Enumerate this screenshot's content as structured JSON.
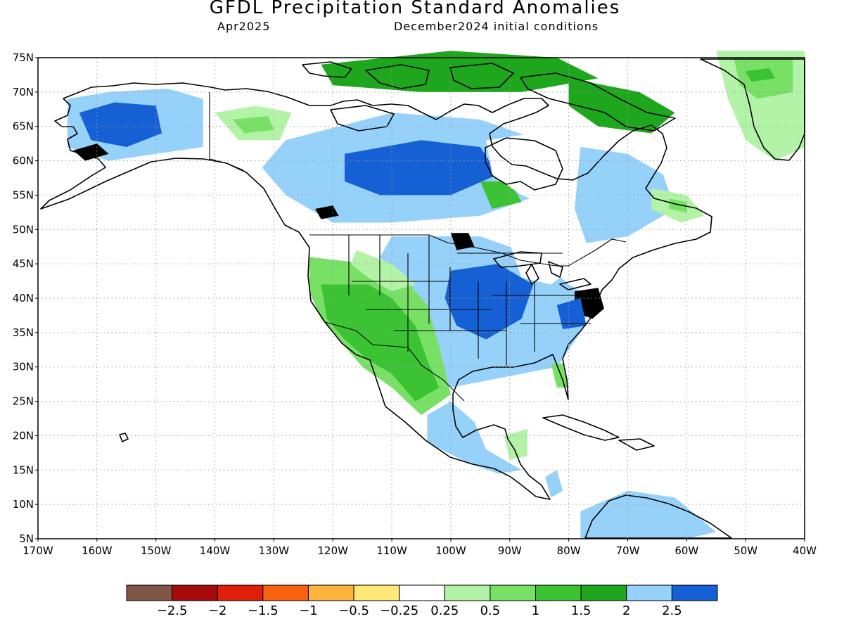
{
  "header": {
    "title": "GFDL Precipitation Standard Anomalies",
    "period": "Apr2025",
    "init": "December2024 initial conditions"
  },
  "map": {
    "lon_range": [
      -170,
      -40
    ],
    "lat_range": [
      5,
      75
    ],
    "lat_ticks": [
      {
        "value": 75,
        "label": "75N"
      },
      {
        "value": 70,
        "label": "70N"
      },
      {
        "value": 65,
        "label": "65N"
      },
      {
        "value": 60,
        "label": "60N"
      },
      {
        "value": 55,
        "label": "55N"
      },
      {
        "value": 50,
        "label": "50N"
      },
      {
        "value": 45,
        "label": "45N"
      },
      {
        "value": 40,
        "label": "40N"
      },
      {
        "value": 35,
        "label": "35N"
      },
      {
        "value": 30,
        "label": "30N"
      },
      {
        "value": 25,
        "label": "25N"
      },
      {
        "value": 20,
        "label": "20N"
      },
      {
        "value": 15,
        "label": "15N"
      },
      {
        "value": 10,
        "label": "10N"
      },
      {
        "value": 5,
        "label": "5N"
      }
    ],
    "lon_ticks": [
      {
        "value": -170,
        "label": "170W"
      },
      {
        "value": -160,
        "label": "160W"
      },
      {
        "value": -150,
        "label": "150W"
      },
      {
        "value": -140,
        "label": "140W"
      },
      {
        "value": -130,
        "label": "130W"
      },
      {
        "value": -120,
        "label": "120W"
      },
      {
        "value": -110,
        "label": "110W"
      },
      {
        "value": -100,
        "label": "100W"
      },
      {
        "value": -90,
        "label": "90W"
      },
      {
        "value": -80,
        "label": "80W"
      },
      {
        "value": -70,
        "label": "70W"
      },
      {
        "value": -60,
        "label": "60W"
      },
      {
        "value": -50,
        "label": "50W"
      },
      {
        "value": -40,
        "label": "40W"
      }
    ],
    "grid": true,
    "regions": [
      {
        "name": "alaska-interior",
        "category": 11,
        "points": [
          [
            -165,
            69
          ],
          [
            -158,
            70
          ],
          [
            -148,
            70.5
          ],
          [
            -142,
            69
          ],
          [
            -142,
            62
          ],
          [
            -150,
            61
          ],
          [
            -158,
            60
          ],
          [
            -165,
            62
          ]
        ]
      },
      {
        "name": "alaska-core",
        "category": 12,
        "points": [
          [
            -163,
            67
          ],
          [
            -157,
            68.5
          ],
          [
            -150,
            68
          ],
          [
            -149,
            64
          ],
          [
            -155,
            62
          ],
          [
            -161,
            63
          ]
        ]
      },
      {
        "name": "alaska-blue",
        "category": 13,
        "points": [
          [
            -164,
            61.5
          ],
          [
            -160,
            62.5
          ],
          [
            -158,
            61
          ],
          [
            -162,
            60
          ]
        ]
      },
      {
        "name": "yukon-dry",
        "category": 7,
        "points": [
          [
            -140,
            67
          ],
          [
            -133,
            68
          ],
          [
            -127,
            67
          ],
          [
            -129,
            63
          ],
          [
            -136,
            63
          ]
        ]
      },
      {
        "name": "yukon-orange",
        "category": 8,
        "points": [
          [
            -137,
            66
          ],
          [
            -131,
            66.5
          ],
          [
            -130,
            64.5
          ],
          [
            -135,
            64
          ]
        ]
      },
      {
        "name": "nwt-boreal",
        "category": 11,
        "points": [
          [
            -128,
            63
          ],
          [
            -110,
            67
          ],
          [
            -95,
            66
          ],
          [
            -85,
            63
          ],
          [
            -80,
            60
          ],
          [
            -85,
            55
          ],
          [
            -95,
            52
          ],
          [
            -110,
            51
          ],
          [
            -120,
            51
          ],
          [
            -128,
            55
          ],
          [
            -132,
            59
          ]
        ]
      },
      {
        "name": "boreal-core",
        "category": 12,
        "points": [
          [
            -118,
            61
          ],
          [
            -105,
            63
          ],
          [
            -95,
            62
          ],
          [
            -92,
            58
          ],
          [
            -100,
            55
          ],
          [
            -112,
            55
          ],
          [
            -118,
            57
          ]
        ]
      },
      {
        "name": "hudson-light",
        "category": 9,
        "points": [
          [
            -95,
            57
          ],
          [
            -90,
            57
          ],
          [
            -88,
            54
          ],
          [
            -93,
            53
          ]
        ]
      },
      {
        "name": "arctic-islands",
        "category": 10,
        "points": [
          [
            -122,
            74
          ],
          [
            -100,
            76
          ],
          [
            -82,
            75
          ],
          [
            -75,
            72
          ],
          [
            -88,
            70
          ],
          [
            -105,
            70
          ],
          [
            -120,
            71
          ]
        ]
      },
      {
        "name": "bc-blue",
        "category": 13,
        "points": [
          [
            -123,
            53
          ],
          [
            -120,
            53.5
          ],
          [
            -119,
            52
          ],
          [
            -122,
            51.5
          ]
        ]
      },
      {
        "name": "hudson-bay-blank",
        "category": 6,
        "points": [
          [
            -94,
            63
          ],
          [
            -86,
            64
          ],
          [
            -78,
            62
          ],
          [
            -78,
            56
          ],
          [
            -82,
            53
          ],
          [
            -88,
            55
          ],
          [
            -93,
            58
          ]
        ]
      },
      {
        "name": "quebec-green",
        "category": 11,
        "points": [
          [
            -78,
            62
          ],
          [
            -70,
            61
          ],
          [
            -64,
            58
          ],
          [
            -62,
            53
          ],
          [
            -70,
            49
          ],
          [
            -77,
            48
          ],
          [
            -79,
            53
          ]
        ]
      },
      {
        "name": "labrador-dry",
        "category": 7,
        "points": [
          [
            -66,
            56
          ],
          [
            -60,
            55
          ],
          [
            -57,
            52
          ],
          [
            -61,
            51
          ],
          [
            -66,
            53
          ]
        ]
      },
      {
        "name": "labrador-orange",
        "category": 8,
        "points": [
          [
            -63,
            54.5
          ],
          [
            -60,
            54
          ],
          [
            -60,
            52.5
          ],
          [
            -63,
            53
          ]
        ]
      },
      {
        "name": "baffin-green",
        "category": 10,
        "points": [
          [
            -80,
            72
          ],
          [
            -68,
            70
          ],
          [
            -62,
            67
          ],
          [
            -66,
            64
          ],
          [
            -75,
            65
          ],
          [
            -80,
            68
          ]
        ]
      },
      {
        "name": "greenland-dry",
        "category": 7,
        "points": [
          [
            -55,
            76
          ],
          [
            -40,
            76
          ],
          [
            -40,
            62
          ],
          [
            -45,
            60
          ],
          [
            -50,
            63
          ],
          [
            -53,
            69
          ]
        ]
      },
      {
        "name": "greenland-orange",
        "category": 8,
        "points": [
          [
            -52,
            75
          ],
          [
            -42,
            75
          ],
          [
            -42,
            70
          ],
          [
            -48,
            69
          ],
          [
            -51,
            71
          ]
        ]
      },
      {
        "name": "greenland-red",
        "category": 9,
        "points": [
          [
            -50,
            73
          ],
          [
            -46,
            73.5
          ],
          [
            -45,
            72
          ],
          [
            -49,
            71.5
          ]
        ]
      },
      {
        "name": "plains-midwest",
        "category": 11,
        "points": [
          [
            -110,
            49
          ],
          [
            -95,
            49
          ],
          [
            -85,
            46
          ],
          [
            -80,
            42
          ],
          [
            -76,
            40
          ],
          [
            -78,
            35
          ],
          [
            -82,
            30
          ],
          [
            -88,
            29
          ],
          [
            -94,
            28
          ],
          [
            -100,
            27
          ],
          [
            -104,
            30
          ],
          [
            -105,
            36
          ],
          [
            -108,
            42
          ],
          [
            -112,
            46
          ]
        ]
      },
      {
        "name": "midwest-core",
        "category": 12,
        "points": [
          [
            -100,
            44
          ],
          [
            -92,
            45
          ],
          [
            -86,
            42
          ],
          [
            -88,
            37
          ],
          [
            -94,
            34
          ],
          [
            -99,
            36
          ],
          [
            -101,
            40
          ]
        ]
      },
      {
        "name": "minnesota-blue",
        "category": 13,
        "points": [
          [
            -100,
            49.5
          ],
          [
            -97,
            49.5
          ],
          [
            -96,
            47.5
          ],
          [
            -99,
            47
          ]
        ]
      },
      {
        "name": "midatlantic-blue",
        "category": 13,
        "points": [
          [
            -79,
            41
          ],
          [
            -75,
            41.5
          ],
          [
            -74,
            38.5
          ],
          [
            -76,
            37
          ],
          [
            -79,
            38
          ]
        ]
      },
      {
        "name": "midatlantic-light",
        "category": 12,
        "points": [
          [
            -82,
            39
          ],
          [
            -78,
            40
          ],
          [
            -77,
            36
          ],
          [
            -81,
            35.5
          ]
        ]
      },
      {
        "name": "great-lakes-blank",
        "category": 6,
        "points": [
          [
            -90,
            48
          ],
          [
            -84,
            48
          ],
          [
            -80,
            44
          ],
          [
            -83,
            42
          ],
          [
            -88,
            43
          ]
        ]
      },
      {
        "name": "west-orange",
        "category": 8,
        "points": [
          [
            -124,
            46
          ],
          [
            -114,
            45
          ],
          [
            -108,
            43
          ],
          [
            -104,
            39
          ],
          [
            -102,
            33
          ],
          [
            -100,
            26
          ],
          [
            -105,
            23
          ],
          [
            -110,
            27
          ],
          [
            -115,
            30
          ],
          [
            -118,
            33
          ],
          [
            -122,
            37
          ],
          [
            -124,
            41
          ]
        ]
      },
      {
        "name": "southwest-red",
        "category": 9,
        "points": [
          [
            -122,
            42
          ],
          [
            -114,
            42
          ],
          [
            -110,
            40
          ],
          [
            -106,
            36
          ],
          [
            -104,
            31
          ],
          [
            -102,
            27
          ],
          [
            -106,
            25
          ],
          [
            -110,
            29
          ],
          [
            -114,
            31
          ],
          [
            -118,
            34
          ],
          [
            -121,
            37
          ]
        ]
      },
      {
        "name": "plateau-dry",
        "category": 7,
        "points": [
          [
            -116,
            47
          ],
          [
            -110,
            45
          ],
          [
            -106,
            42
          ],
          [
            -110,
            41
          ],
          [
            -114,
            43
          ],
          [
            -117,
            45
          ]
        ]
      },
      {
        "name": "mexico-green",
        "category": 11,
        "points": [
          [
            -100,
            25
          ],
          [
            -96,
            22
          ],
          [
            -94,
            18
          ],
          [
            -90,
            16
          ],
          [
            -88,
            15
          ],
          [
            -92,
            14.5
          ],
          [
            -97,
            16
          ],
          [
            -104,
            19
          ],
          [
            -104,
            23
          ]
        ]
      },
      {
        "name": "yucatan-dry",
        "category": 7,
        "points": [
          [
            -91,
            20
          ],
          [
            -87,
            21
          ],
          [
            -87,
            17
          ],
          [
            -90,
            16.5
          ]
        ]
      },
      {
        "name": "florida-dry",
        "category": 8,
        "points": [
          [
            -83,
            30.5
          ],
          [
            -81,
            30.5
          ],
          [
            -80,
            27
          ],
          [
            -82,
            27
          ]
        ]
      },
      {
        "name": "south-america",
        "category": 11,
        "points": [
          [
            -78,
            9
          ],
          [
            -70,
            12
          ],
          [
            -62,
            11
          ],
          [
            -55,
            6
          ],
          [
            -60,
            5
          ],
          [
            -78,
            5
          ]
        ]
      },
      {
        "name": "caribbean-green",
        "category": 11,
        "points": [
          [
            -84,
            14
          ],
          [
            -82,
            15
          ],
          [
            -81,
            12
          ],
          [
            -83,
            11
          ]
        ]
      }
    ]
  },
  "colorbar": {
    "colors": [
      "#7f5648",
      "#a50b0b",
      "#de1f0a",
      "#f9620f",
      "#fdb43c",
      "#fde878",
      "#ffffff",
      "#b3f3a8",
      "#78e064",
      "#3bc333",
      "#1ea71c",
      "#96d1fa",
      "#1560d4"
    ],
    "labels": [
      "−2.5",
      "−2",
      "−1.5",
      "−1",
      "−0.5",
      "−0.25",
      "0.25",
      "0.5",
      "1",
      "1.5",
      "2",
      "2.5"
    ]
  }
}
